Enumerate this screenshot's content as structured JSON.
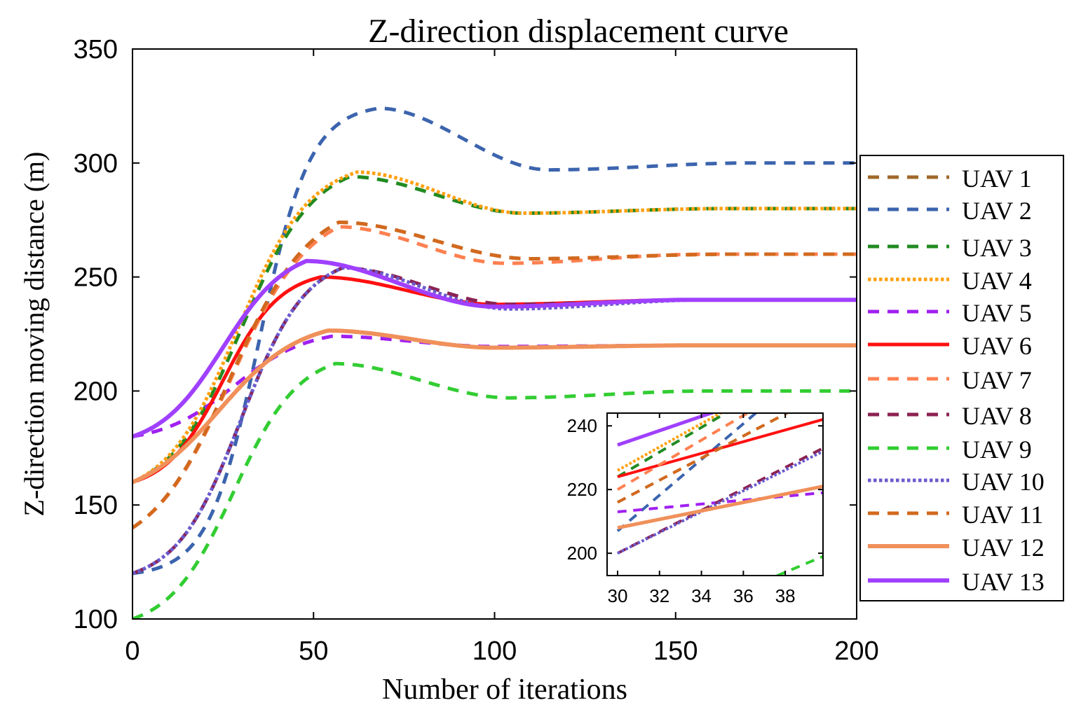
{
  "chart_data": {
    "type": "line",
    "title": "Z-direction displacement curve",
    "xlabel": "Number of iterations",
    "ylabel": "Z-direction moving distance (m)",
    "xlim": [
      0,
      200
    ],
    "ylim": [
      100,
      350
    ],
    "xticks": [
      0,
      50,
      100,
      150,
      200
    ],
    "yticks": [
      100,
      150,
      200,
      250,
      300,
      350
    ],
    "grid": false,
    "legend_position": "right-outside",
    "series": [
      {
        "name": "UAV 1",
        "color": "#A0682A",
        "style": "dash",
        "width": 5,
        "start": 140,
        "final": 260,
        "peak": 274,
        "peak_x": 57,
        "trough": 258,
        "trough_x": 110,
        "rise_center": 27,
        "rise_width": 11
      },
      {
        "name": "UAV 2",
        "color": "#3C64AE",
        "style": "dash",
        "width": 5,
        "start": 120,
        "final": 300,
        "peak": 324,
        "peak_x": 68,
        "trough": 297,
        "trough_x": 115,
        "rise_center": 35,
        "rise_width": 7
      },
      {
        "name": "UAV 3",
        "color": "#228B22",
        "style": "dash",
        "width": 5,
        "start": 160,
        "final": 280,
        "peak": 294,
        "peak_x": 60,
        "trough": 278,
        "trough_x": 108,
        "rise_center": 30,
        "rise_width": 10
      },
      {
        "name": "UAV 4",
        "color": "#FFA010",
        "style": "dot",
        "width": 5,
        "start": 160,
        "final": 280,
        "peak": 296,
        "peak_x": 62,
        "trough": 278,
        "trough_x": 108,
        "rise_center": 29,
        "rise_width": 10
      },
      {
        "name": "UAV 5",
        "color": "#A020F0",
        "style": "dash",
        "width": 5,
        "start": 180,
        "final": 220,
        "peak": 224,
        "peak_x": 55,
        "trough": 219.5,
        "trough_x": 100,
        "rise_center": 28,
        "rise_width": 10
      },
      {
        "name": "UAV 6",
        "color": "#FF1010",
        "style": "solid",
        "width": 5,
        "start": 160,
        "final": 240,
        "peak": 250,
        "peak_x": 52,
        "trough": 238,
        "trough_x": 100,
        "rise_center": 25,
        "rise_width": 8
      },
      {
        "name": "UAV 7",
        "color": "#FF8050",
        "style": "dash",
        "width": 5,
        "start": 140,
        "final": 260,
        "peak": 272,
        "peak_x": 57,
        "trough": 256,
        "trough_x": 103,
        "rise_center": 27,
        "rise_width": 11
      },
      {
        "name": "UAV 8",
        "color": "#8B2252",
        "style": "dash",
        "width": 5,
        "start": 120,
        "final": 240,
        "peak": 254,
        "peak_x": 58,
        "trough": 238,
        "trough_x": 104,
        "rise_center": 30,
        "rise_width": 9
      },
      {
        "name": "UAV 9",
        "color": "#32CD32",
        "style": "dash",
        "width": 5,
        "start": 100,
        "final": 200,
        "peak": 212,
        "peak_x": 56,
        "trough": 197,
        "trough_x": 104,
        "rise_center": 28,
        "rise_width": 9
      },
      {
        "name": "UAV 10",
        "color": "#6A5ACD",
        "style": "dot",
        "width": 5,
        "start": 120,
        "final": 240,
        "peak": 254,
        "peak_x": 58,
        "trough": 236,
        "trough_x": 104,
        "rise_center": 30,
        "rise_width": 9
      },
      {
        "name": "UAV 11",
        "color": "#D2691E",
        "style": "dash",
        "width": 5,
        "start": 140,
        "final": 260,
        "peak": 274,
        "peak_x": 57,
        "trough": 258,
        "trough_x": 110,
        "rise_center": 27,
        "rise_width": 11
      },
      {
        "name": "UAV 12",
        "color": "#F0905A",
        "style": "solid",
        "width": 6,
        "start": 160,
        "final": 220,
        "peak": 226.5,
        "peak_x": 54,
        "trough": 219,
        "trough_x": 100,
        "rise_center": 24,
        "rise_width": 11
      },
      {
        "name": "UAV 13",
        "color": "#A040FF",
        "style": "solid",
        "width": 6,
        "start": 180,
        "final": 240,
        "peak": 257,
        "peak_x": 48,
        "trough": 237,
        "trough_x": 100,
        "rise_center": 25,
        "rise_width": 9
      }
    ],
    "inset": {
      "xlim": [
        29.5,
        39.8
      ],
      "ylim": [
        193,
        244
      ],
      "xticks": [
        30,
        32,
        34,
        36,
        38
      ],
      "yticks": [
        200,
        220,
        240
      ],
      "series_values_at_30_and_39_8": {
        "UAV 1": [
          216,
          250
        ],
        "UAV 2": [
          207,
          262
        ],
        "UAV 3": [
          224,
          262
        ],
        "UAV 4": [
          226,
          262
        ],
        "UAV 5": [
          213,
          219
        ],
        "UAV 6": [
          224,
          242
        ],
        "UAV 7": [
          220,
          258
        ],
        "UAV 8": [
          200,
          233
        ],
        "UAV 9": [
          172,
          199
        ],
        "UAV 10": [
          200,
          232
        ],
        "UAV 11": [
          216,
          250
        ],
        "UAV 12": [
          208,
          221
        ],
        "UAV 13": [
          234,
          256
        ]
      }
    }
  }
}
